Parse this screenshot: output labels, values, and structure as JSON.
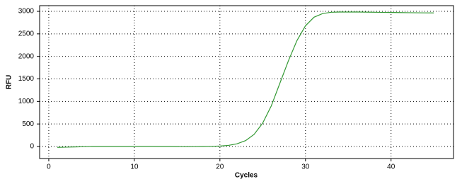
{
  "chart_data": {
    "type": "line",
    "xlabel": "Cycles",
    "ylabel": "RFU",
    "x": [
      1,
      2,
      3,
      4,
      5,
      6,
      7,
      8,
      9,
      10,
      11,
      12,
      13,
      14,
      15,
      16,
      17,
      18,
      19,
      20,
      21,
      22,
      23,
      24,
      25,
      26,
      27,
      28,
      29,
      30,
      31,
      32,
      33,
      34,
      35,
      36,
      37,
      38,
      39,
      40,
      41,
      42,
      43,
      44,
      45
    ],
    "series": [
      {
        "color": "#339933",
        "values": [
          -20,
          -15,
          -10,
          -5,
          0,
          0,
          0,
          0,
          0,
          2,
          2,
          2,
          0,
          0,
          -2,
          -5,
          -3,
          0,
          3,
          10,
          25,
          60,
          130,
          270,
          520,
          900,
          1400,
          1900,
          2350,
          2680,
          2870,
          2950,
          2980,
          2985,
          2985,
          2985,
          2983,
          2980,
          2978,
          2975,
          2973,
          2970,
          2968,
          2966,
          2965
        ]
      }
    ],
    "xlim": [
      -1.07,
      47.3
    ],
    "ylim": [
      -267,
      3126
    ],
    "xticks": [
      0,
      10,
      20,
      30,
      40
    ],
    "yticks": [
      0,
      500,
      1000,
      1500,
      2000,
      2500,
      3000
    ],
    "grid": true
  }
}
